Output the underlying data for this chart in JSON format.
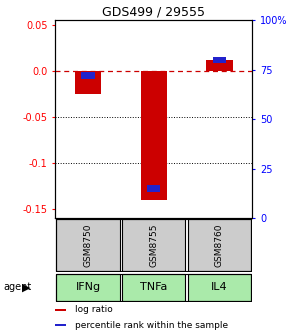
{
  "title": "GDS499 / 29555",
  "samples": [
    "GSM8750",
    "GSM8755",
    "GSM8760"
  ],
  "agents": [
    "IFNg",
    "TNFa",
    "IL4"
  ],
  "log_ratios": [
    -0.025,
    -0.14,
    0.012
  ],
  "percentile_ranks": [
    0.72,
    0.15,
    0.8
  ],
  "ylim_left": [
    -0.16,
    0.055
  ],
  "yticks_left": [
    -0.15,
    -0.1,
    -0.05,
    0.0,
    0.05
  ],
  "yticks_right_pct": [
    0,
    25,
    50,
    75,
    100
  ],
  "bar_width": 0.4,
  "pct_bar_width": 0.2,
  "pct_bar_height": 0.007,
  "log_color": "#cc0000",
  "pct_color": "#2222cc",
  "zero_line_color": "#cc0000",
  "grid_color": "#000000",
  "agent_colors": [
    "#aaeaaa",
    "#aaeaaa",
    "#aaeaaa"
  ],
  "sample_box_color": "#cccccc",
  "legend_fontsize": 6.5,
  "title_fontsize": 9,
  "tick_fontsize": 7,
  "agent_fontsize": 8,
  "sample_fontsize": 6.5
}
